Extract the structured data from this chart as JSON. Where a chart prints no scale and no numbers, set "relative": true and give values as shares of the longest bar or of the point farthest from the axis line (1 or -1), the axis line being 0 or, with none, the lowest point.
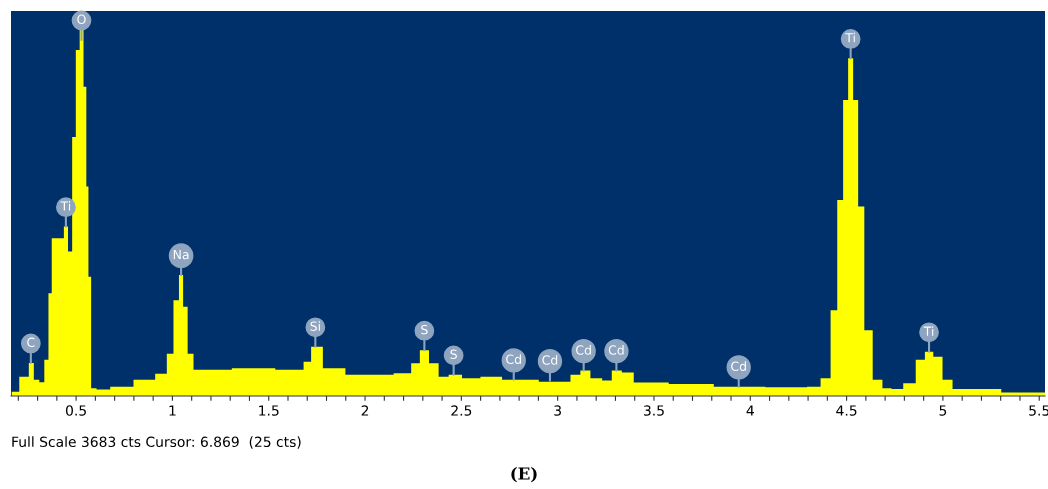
{
  "chart_data": {
    "type": "area",
    "relative": true,
    "color": "#ffff00",
    "x": [
      0.166,
      0.244,
      0.265,
      0.296,
      0.322,
      0.348,
      0.365,
      0.382,
      0.426,
      0.447,
      0.469,
      0.49,
      0.507,
      0.53,
      0.547,
      0.559,
      0.569,
      0.587,
      0.625,
      0.729,
      0.867,
      0.954,
      0.988,
      1.023,
      1.045,
      1.066,
      1.092,
      1.127,
      1.213,
      1.404,
      1.664,
      1.698,
      1.742,
      1.82,
      1.976,
      2.079,
      2.218,
      2.261,
      2.308,
      2.356,
      2.408,
      2.46,
      2.547,
      2.651,
      2.772,
      3.032,
      3.101,
      3.135,
      3.205,
      3.257,
      3.305,
      3.361,
      3.429,
      3.724,
      3.897,
      4.26,
      4.33,
      4.4,
      4.434,
      4.469,
      4.495,
      4.521,
      4.547,
      4.573,
      4.611,
      4.66,
      4.712,
      4.755,
      4.833,
      4.885,
      4.928,
      4.972,
      5.024,
      5.076,
      5.53
    ],
    "values": [
      0.011,
      0.05,
      0.086,
      0.042,
      0.036,
      0.094,
      0.267,
      0.41,
      0.41,
      0.44,
      0.375,
      0.673,
      0.899,
      1.0,
      0.803,
      0.544,
      0.31,
      0.02,
      0.017,
      0.024,
      0.042,
      0.058,
      0.11,
      0.249,
      0.314,
      0.232,
      0.11,
      0.068,
      0.068,
      0.072,
      0.068,
      0.089,
      0.128,
      0.072,
      0.055,
      0.055,
      0.059,
      0.085,
      0.119,
      0.085,
      0.05,
      0.055,
      0.046,
      0.05,
      0.042,
      0.037,
      0.055,
      0.066,
      0.046,
      0.04,
      0.066,
      0.061,
      0.035,
      0.031,
      0.024,
      0.023,
      0.024,
      0.046,
      0.223,
      0.509,
      0.769,
      0.877,
      0.769,
      0.492,
      0.171,
      0.042,
      0.02,
      0.018,
      0.033,
      0.094,
      0.115,
      0.102,
      0.042,
      0.018,
      0.009
    ],
    "xlim": [
      0.162,
      5.53
    ],
    "xticks": [
      {
        "value": 0.2,
        "label": null
      },
      {
        "value": 0.3,
        "label": null
      },
      {
        "value": 0.4,
        "label": null
      },
      0.5,
      {
        "value": 0.6,
        "label": null
      },
      {
        "value": 0.7,
        "label": null
      },
      {
        "value": 0.8,
        "label": null
      },
      {
        "value": 0.9,
        "label": null
      },
      1,
      {
        "value": 1.1,
        "label": null
      },
      {
        "value": 1.2,
        "label": null
      },
      {
        "value": 1.3,
        "label": null
      },
      {
        "value": 1.4,
        "label": null
      },
      1.5,
      {
        "value": 1.6,
        "label": null
      },
      {
        "value": 1.7,
        "label": null
      },
      {
        "value": 1.8,
        "label": null
      },
      {
        "value": 1.9,
        "label": null
      },
      2,
      {
        "value": 2.1,
        "label": null
      },
      {
        "value": 2.2,
        "label": null
      },
      {
        "value": 2.3,
        "label": null
      },
      {
        "value": 2.4,
        "label": null
      },
      2.5,
      {
        "value": 2.6,
        "label": null
      },
      {
        "value": 2.7,
        "label": null
      },
      {
        "value": 2.8,
        "label": null
      },
      {
        "value": 2.9,
        "label": null
      },
      3,
      {
        "value": 3.1,
        "label": null
      },
      {
        "value": 3.2,
        "label": null
      },
      {
        "value": 3.3,
        "label": null
      },
      {
        "value": 3.4,
        "label": null
      },
      3.5,
      {
        "value": 3.6,
        "label": null
      },
      {
        "value": 3.7,
        "label": null
      },
      {
        "value": 3.8,
        "label": null
      },
      {
        "value": 3.9,
        "label": null
      },
      4,
      {
        "value": 4.1,
        "label": null
      },
      {
        "value": 4.2,
        "label": null
      },
      {
        "value": 4.3,
        "label": null
      },
      {
        "value": 4.4,
        "label": null
      },
      4.5,
      {
        "value": 4.6,
        "label": null
      },
      {
        "value": 4.7,
        "label": null
      },
      {
        "value": 4.8,
        "label": null
      },
      {
        "value": 4.9,
        "label": null
      },
      5,
      {
        "value": 5.1,
        "label": null
      },
      {
        "value": 5.2,
        "label": null
      },
      {
        "value": 5.3,
        "label": null
      },
      {
        "value": 5.4,
        "label": null
      },
      5.5
    ],
    "grid": false,
    "legend": false,
    "annotations": [
      "Full Scale 3683 cts Cursor: 6.869  (25 cts)",
      "(E)",
      {
        "text": "C",
        "x": 0.265,
        "y": 0.086
      },
      {
        "text": "Ti",
        "x": 0.447,
        "y": 0.44
      },
      {
        "text": "O",
        "x": 0.528,
        "y": 0.925
      },
      {
        "text": "Na",
        "x": 1.045,
        "y": 0.314
      },
      {
        "text": "Si",
        "x": 1.742,
        "y": 0.128
      },
      {
        "text": "S",
        "x": 2.308,
        "y": 0.119
      },
      {
        "text": "S",
        "x": 2.46,
        "y": 0.055
      },
      {
        "text": "Cd",
        "x": 2.772,
        "y": 0.042
      },
      {
        "text": "Cd",
        "x": 2.96,
        "y": 0.04
      },
      {
        "text": "Cd",
        "x": 3.135,
        "y": 0.066
      },
      {
        "text": "Cd",
        "x": 3.305,
        "y": 0.066
      },
      {
        "text": "Cd",
        "x": 3.94,
        "y": 0.024
      },
      {
        "text": "Ti",
        "x": 4.521,
        "y": 0.877
      },
      {
        "text": "Ti",
        "x": 4.928,
        "y": 0.115
      }
    ]
  }
}
